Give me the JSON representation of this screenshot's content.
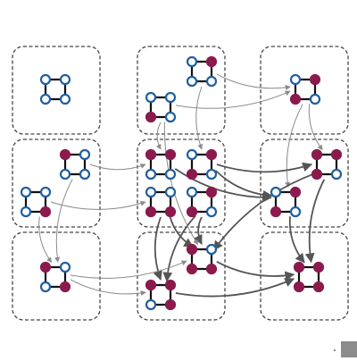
{
  "colors": {
    "blue": "#1f5fa3",
    "maroon": "#8b1a4d",
    "node_fill_empty": "#ffffff",
    "edge": "#111111",
    "box_stroke": "#444444",
    "arrow_light": "#8a8a8a",
    "arrow_dark": "#555555",
    "corner_mark": "#8c8c8c"
  },
  "diagram": {
    "cells": [
      {
        "id": "r0c0",
        "row": 0,
        "col": 0
      },
      {
        "id": "r0c1",
        "row": 0,
        "col": 1
      },
      {
        "id": "r0c2",
        "row": 0,
        "col": 2
      },
      {
        "id": "r1c0",
        "row": 1,
        "col": 0
      },
      {
        "id": "r1c1",
        "row": 1,
        "col": 1
      },
      {
        "id": "r1c2",
        "row": 1,
        "col": 2
      },
      {
        "id": "r2c0",
        "row": 2,
        "col": 0
      },
      {
        "id": "r2c1",
        "row": 2,
        "col": 1
      },
      {
        "id": "r2c2",
        "row": 2,
        "col": 2
      }
    ],
    "graphs": [
      {
        "id": "g1",
        "cell": "r0c0",
        "nodes": [
          "empty",
          "empty",
          "empty",
          "empty"
        ]
      },
      {
        "id": "g2",
        "cell": "r0c1",
        "nodes": [
          "empty",
          "maroon",
          "empty",
          "empty"
        ]
      },
      {
        "id": "g3",
        "cell": "r0c1",
        "nodes": [
          "empty",
          "empty",
          "empty",
          "maroon"
        ]
      },
      {
        "id": "g4",
        "cell": "r0c2",
        "nodes": [
          "empty",
          "maroon",
          "empty",
          "maroon"
        ]
      },
      {
        "id": "g5",
        "cell": "r1c0",
        "nodes": [
          "maroon",
          "empty",
          "empty",
          "empty"
        ]
      },
      {
        "id": "g6",
        "cell": "r1c0",
        "nodes": [
          "empty",
          "empty",
          "maroon",
          "empty"
        ]
      },
      {
        "id": "g7",
        "cell": "r1c1",
        "nodes": [
          "maroon",
          "maroon",
          "empty",
          "empty"
        ]
      },
      {
        "id": "g8",
        "cell": "r1c1",
        "nodes": [
          "empty",
          "maroon",
          "empty",
          "maroon"
        ]
      },
      {
        "id": "g9",
        "cell": "r1c1",
        "nodes": [
          "empty",
          "empty",
          "maroon",
          "maroon"
        ]
      },
      {
        "id": "g10",
        "cell": "r1c1",
        "nodes": [
          "empty",
          "maroon",
          "empty",
          "maroon"
        ]
      },
      {
        "id": "g11",
        "cell": "r1c2",
        "nodes": [
          "empty",
          "maroon",
          "empty",
          "maroon"
        ]
      },
      {
        "id": "g12",
        "cell": "r1c2",
        "nodes": [
          "maroon",
          "maroon",
          "empty",
          "maroon"
        ]
      },
      {
        "id": "g13",
        "cell": "r2c0",
        "nodes": [
          "maroon",
          "empty",
          "maroon",
          "empty"
        ]
      },
      {
        "id": "g14",
        "cell": "r2c1",
        "nodes": [
          "maroon",
          "empty",
          "maroon",
          "maroon"
        ]
      },
      {
        "id": "g15",
        "cell": "r2c1",
        "nodes": [
          "maroon",
          "maroon",
          "maroon",
          "empty"
        ]
      },
      {
        "id": "g16",
        "cell": "r2c2",
        "nodes": [
          "maroon",
          "maroon",
          "maroon",
          "maroon"
        ]
      }
    ],
    "arrows": [
      {
        "from": "g2",
        "to": "g4",
        "weight": "light"
      },
      {
        "from": "g3",
        "to": "g4",
        "weight": "light"
      },
      {
        "from": "g5",
        "to": "g7",
        "weight": "light"
      },
      {
        "from": "g6",
        "to": "g9",
        "weight": "light"
      },
      {
        "from": "g5",
        "to": "g13",
        "weight": "light"
      },
      {
        "from": "g6",
        "to": "g13",
        "weight": "light"
      },
      {
        "from": "g2",
        "to": "g8",
        "weight": "light"
      },
      {
        "from": "g3",
        "to": "g7",
        "weight": "light"
      },
      {
        "from": "g4",
        "to": "g11",
        "weight": "light"
      },
      {
        "from": "g4",
        "to": "g12",
        "weight": "light"
      },
      {
        "from": "g7",
        "to": "g11",
        "weight": "dark"
      },
      {
        "from": "g8",
        "to": "g11",
        "weight": "dark"
      },
      {
        "from": "g8",
        "to": "g12",
        "weight": "dark"
      },
      {
        "from": "g9",
        "to": "g14",
        "weight": "dark"
      },
      {
        "from": "g9",
        "to": "g15",
        "weight": "dark"
      },
      {
        "from": "g10",
        "to": "g14",
        "weight": "dark"
      },
      {
        "from": "g10",
        "to": "g15",
        "weight": "dark"
      },
      {
        "from": "g13",
        "to": "g15",
        "weight": "light"
      },
      {
        "from": "g13",
        "to": "g14",
        "weight": "light"
      },
      {
        "from": "g11",
        "to": "g16",
        "weight": "dark"
      },
      {
        "from": "g12",
        "to": "g16",
        "weight": "dark"
      },
      {
        "from": "g14",
        "to": "g16",
        "weight": "dark"
      },
      {
        "from": "g15",
        "to": "g16",
        "weight": "dark"
      },
      {
        "from": "g3",
        "to": "g14",
        "weight": "light"
      },
      {
        "from": "g12",
        "to": "g14",
        "weight": "dark"
      }
    ]
  }
}
